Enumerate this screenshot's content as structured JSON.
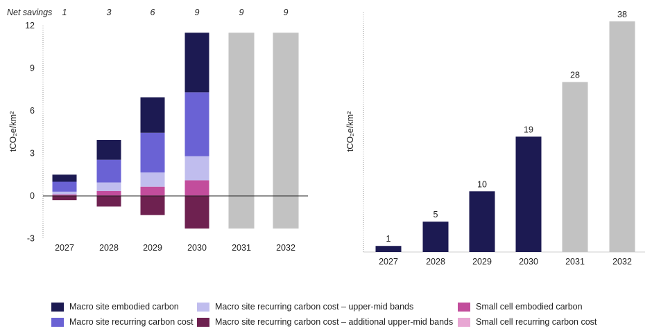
{
  "colors": {
    "embodied": "#1c1a52",
    "recurring": "#6a62d4",
    "upper_mid": "#c0bdee",
    "additional_upper_mid": "#6e2150",
    "small_cell_embodied": "#c24d9c",
    "small_cell_recurring": "#e8a6d3",
    "projection": "#c2c2c2",
    "axis": "#222222"
  },
  "chart_data": [
    {
      "type": "bar",
      "stacked": true,
      "top_row_label": "Net savings",
      "top_row_values": [
        "1",
        "3",
        "6",
        "9",
        "9",
        "9"
      ],
      "categories": [
        "2027",
        "2028",
        "2029",
        "2030",
        "2031",
        "2032"
      ],
      "ylabel": "tCO₂e/km²",
      "ylim": [
        -3,
        12
      ],
      "yticks": [
        "-3",
        "0",
        "3",
        "6",
        "9",
        "12"
      ],
      "grid": false,
      "series": [
        {
          "name": "Macro site embodied carbon",
          "color_key": "embodied",
          "values": [
            0.5,
            1.4,
            2.5,
            4.2,
            0,
            0
          ]
        },
        {
          "name": "Macro site recurring carbon cost",
          "color_key": "recurring",
          "values": [
            0.7,
            1.6,
            2.8,
            4.5,
            0,
            0
          ]
        },
        {
          "name": "Macro site recurring carbon cost – upper-mid bands",
          "color_key": "upper_mid",
          "values": [
            0.2,
            0.6,
            1.0,
            1.7,
            0,
            0
          ]
        },
        {
          "name": "Macro site recurring carbon cost – additional upper-mid bands",
          "color_key": "additional_upper_mid",
          "values": [
            -0.3,
            -0.75,
            -1.35,
            -2.3,
            0,
            0
          ]
        },
        {
          "name": "Small cell embodied carbon",
          "color_key": "small_cell_embodied",
          "values": [
            0.1,
            0.35,
            0.65,
            1.1,
            0,
            0
          ]
        },
        {
          "name": "Small cell recurring carbon cost",
          "color_key": "small_cell_recurring",
          "values": [
            0,
            0,
            0,
            0,
            0,
            0
          ]
        }
      ],
      "projection": {
        "color_key": "projection",
        "top": [
          null,
          null,
          null,
          null,
          11.5,
          11.5
        ],
        "bottom": [
          null,
          null,
          null,
          null,
          -2.3,
          -2.3
        ]
      }
    },
    {
      "type": "bar",
      "categories": [
        "2027",
        "2028",
        "2029",
        "2030",
        "2031",
        "2032"
      ],
      "values": [
        1,
        5,
        10,
        19,
        28,
        38
      ],
      "data_labels": [
        "1",
        "5",
        "10",
        "19",
        "28",
        "38"
      ],
      "color_keys": [
        "embodied",
        "embodied",
        "embodied",
        "embodied",
        "projection",
        "projection"
      ],
      "ylabel": "tCO₂e/km²",
      "ylim": [
        0,
        39
      ],
      "grid": false
    }
  ],
  "legend": [
    {
      "label": "Macro site embodied carbon",
      "color_key": "embodied"
    },
    {
      "label": "Macro site recurring carbon cost",
      "color_key": "recurring"
    },
    {
      "label": "Macro site recurring carbon cost – upper-mid bands",
      "color_key": "upper_mid"
    },
    {
      "label": "Macro site recurring carbon cost – additional upper-mid bands",
      "color_key": "additional_upper_mid"
    },
    {
      "label": "Small cell embodied carbon",
      "color_key": "small_cell_embodied"
    },
    {
      "label": "Small cell recurring carbon cost",
      "color_key": "small_cell_recurring"
    }
  ]
}
